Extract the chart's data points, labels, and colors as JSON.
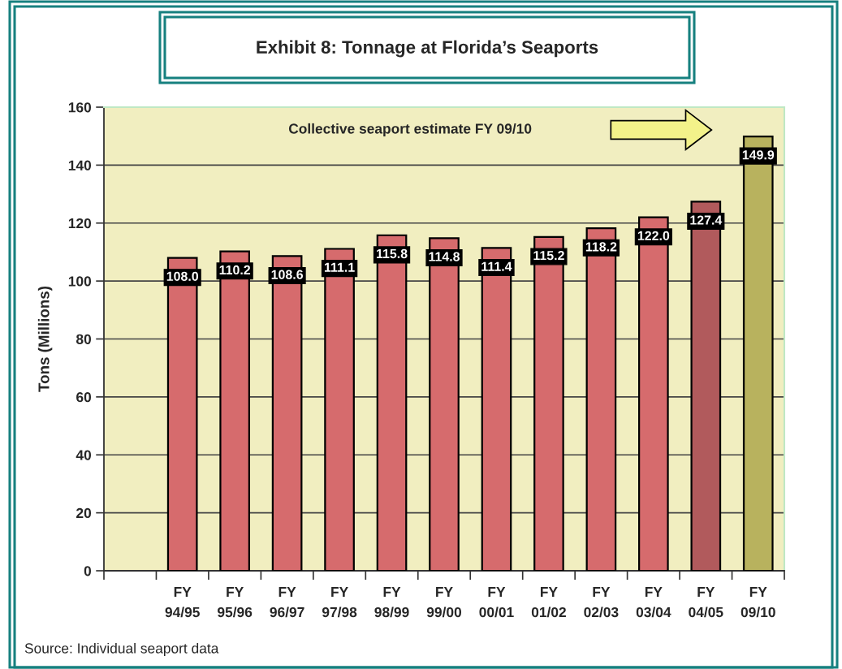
{
  "chart_data": {
    "type": "bar",
    "title": "Exhibit 8: Tonnage at Florida’s Seaports",
    "ylabel": "Tons (Millions)",
    "categories": [
      null,
      "FY\n94/95",
      "FY\n95/96",
      "FY\n96/97",
      "FY\n97/98",
      "FY\n98/99",
      "FY\n99/00",
      "FY\n00/01",
      "FY\n01/02",
      "FY\n02/03",
      "FY\n03/04",
      "FY\n04/05",
      "FY\n09/10"
    ],
    "values": [
      null,
      108.0,
      110.2,
      108.6,
      111.1,
      115.8,
      114.8,
      111.4,
      115.2,
      118.2,
      122.0,
      127.4,
      149.9
    ],
    "value_labels": [
      null,
      "108.0",
      "110.2",
      "108.6",
      "111.1",
      "115.8",
      "114.8",
      "111.4",
      "115.2",
      "118.2",
      "122.0",
      "127.4",
      "149.9"
    ],
    "colors": [
      null,
      "#d66b6d",
      "#d66b6d",
      "#d66b6d",
      "#d66b6d",
      "#d66b6d",
      "#d66b6d",
      "#d66b6d",
      "#d66b6d",
      "#d66b6d",
      "#d66b6d",
      "#b15a5c",
      "#b8b25e"
    ],
    "ylim": [
      0,
      160
    ],
    "yticks": [
      0,
      20,
      40,
      60,
      80,
      100,
      120,
      140,
      160
    ],
    "grid": "y",
    "annotations": [
      "Collective seaport estimate FY 09/10",
      "Source: Individual seaport data"
    ]
  }
}
